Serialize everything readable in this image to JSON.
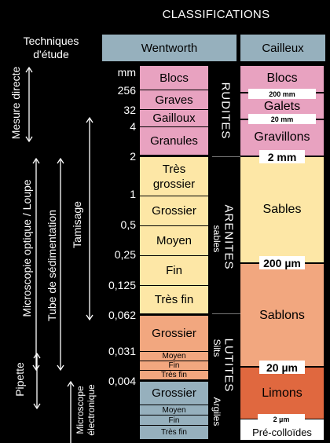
{
  "title": "CLASSIFICATIONS",
  "techniques_header": "Techniques d'étude",
  "wentworth_header": "Wentworth",
  "cailleux_header": "Cailleux",
  "scale": [
    "mm",
    "256",
    "32",
    "4",
    "2",
    "1",
    "0,5",
    "0,25",
    "0,125",
    "0,062",
    "0,031",
    "0,004"
  ],
  "wentworth": {
    "rudites": [
      "Blocs",
      "Graves",
      "Gailloux",
      "Granules"
    ],
    "arenites": [
      "Très grossier",
      "Grossier",
      "Moyen",
      "Fin",
      "Très fin"
    ],
    "silts": [
      "Grossier",
      "Moyen",
      "Fin",
      "Très fin"
    ],
    "argiles": [
      "Grossier",
      "Moyen",
      "Fin",
      "Très fin"
    ]
  },
  "groups": {
    "rudites": "RUDITES",
    "arenites": "ARENITES",
    "arenites_sub": "sables",
    "lutites": "LUTITES",
    "silts": "Silts",
    "argiles": "Argiles"
  },
  "cailleux": [
    "Blocs",
    "Galets",
    "Gravillons",
    "Sables",
    "Sablons",
    "Limons",
    "Pré-colloïdes"
  ],
  "cailleux_limits_small": [
    "200 mm",
    "20 mm",
    "2 µm"
  ],
  "cailleux_limits_large": [
    "2 mm",
    "200 µm",
    "20 µm"
  ],
  "techniques": [
    "Mesure directe",
    "Microscopie optique / Loupe",
    "Tube de sédimentation",
    "Tamisage",
    "Pipette",
    "Microscope électronique"
  ],
  "colors": {
    "background": "#000000",
    "header": "#96b0bd",
    "rudites": "#e8a2c0",
    "arenites": "#fde7a6",
    "silts": "#f2a77f",
    "argiles": "#96b0bd",
    "sablons": "#f2a77f",
    "limons": "#e0683f"
  }
}
